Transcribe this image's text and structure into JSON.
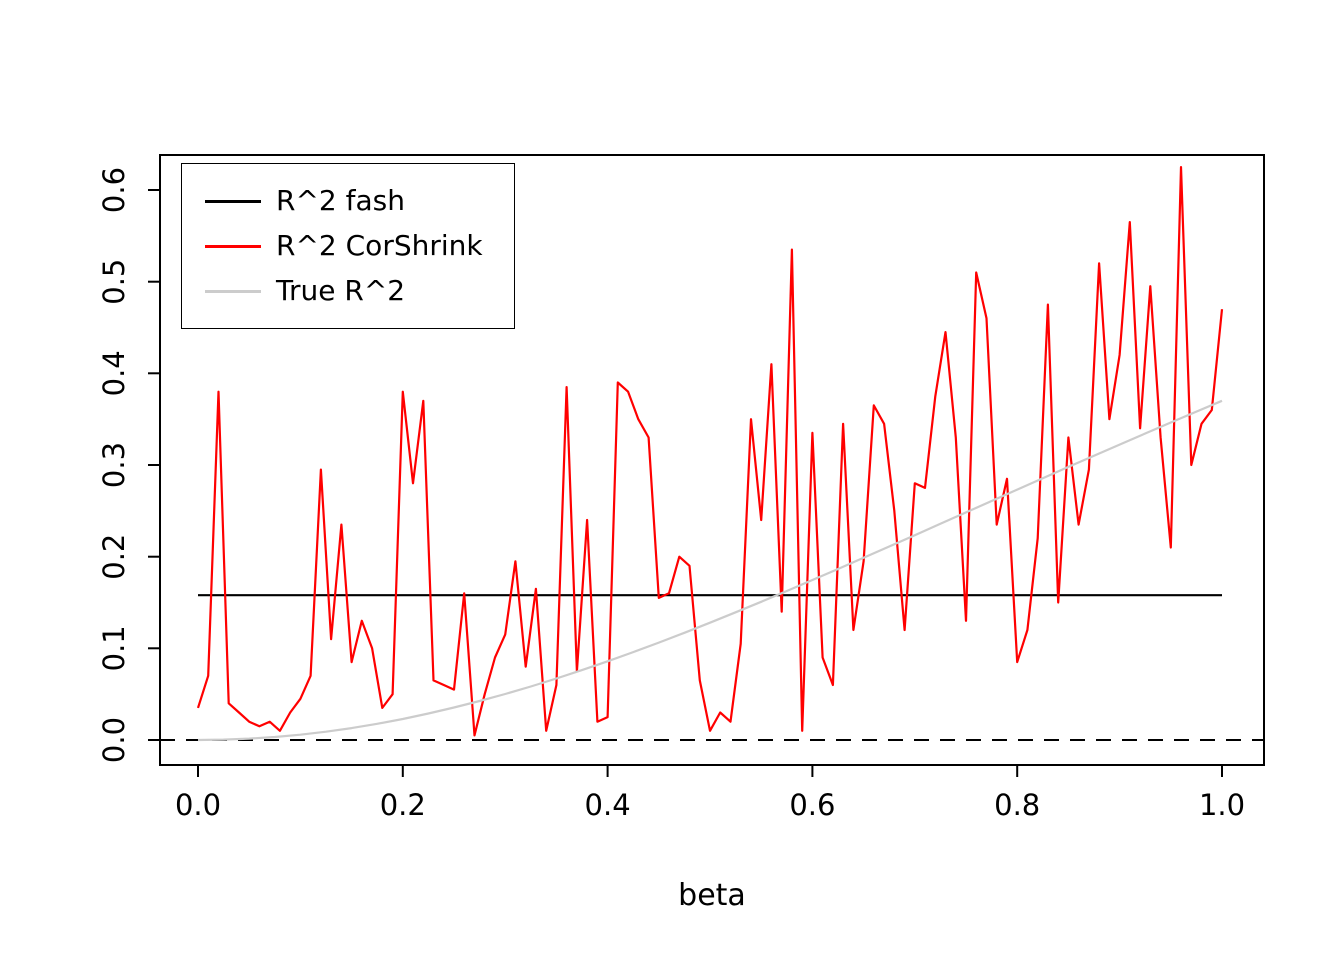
{
  "figure": {
    "background": "#ffffff",
    "legend": {
      "position": "top-left",
      "entries": [
        {
          "label": "R^2 fash",
          "color": "#000000"
        },
        {
          "label": "R^2 CorShrink",
          "color": "#ff0000"
        },
        {
          "label": "True R^2",
          "color": "#cccccc"
        }
      ]
    }
  },
  "chart_data": {
    "type": "line",
    "title": "",
    "xlabel": "beta",
    "ylabel": "",
    "xlim": [
      0,
      1
    ],
    "ylim": [
      -0.02,
      0.64
    ],
    "x_ticks": [
      "0.0",
      "0.2",
      "0.4",
      "0.6",
      "0.8",
      "1.0"
    ],
    "y_ticks": [
      "0.0",
      "0.1",
      "0.2",
      "0.3",
      "0.4",
      "0.5",
      "0.6"
    ],
    "grid": false,
    "legend_position": "top-left",
    "reference_lines": [
      {
        "y": 0,
        "style": "dashed",
        "color": "#000000"
      }
    ],
    "series": [
      {
        "name": "R^2 fash",
        "color": "#000000",
        "style": "solid",
        "x": [
          0,
          1
        ],
        "values": [
          0.158,
          0.158
        ]
      },
      {
        "name": "R^2 CorShrink",
        "color": "#ff0000",
        "style": "solid",
        "x_start": 0,
        "x_step": 0.01,
        "values": [
          0.035,
          0.07,
          0.38,
          0.04,
          0.03,
          0.02,
          0.015,
          0.02,
          0.01,
          0.03,
          0.045,
          0.07,
          0.295,
          0.11,
          0.235,
          0.085,
          0.13,
          0.1,
          0.035,
          0.05,
          0.38,
          0.28,
          0.37,
          0.065,
          0.06,
          0.055,
          0.16,
          0.005,
          0.05,
          0.09,
          0.115,
          0.195,
          0.08,
          0.165,
          0.01,
          0.06,
          0.385,
          0.075,
          0.24,
          0.02,
          0.025,
          0.39,
          0.38,
          0.35,
          0.33,
          0.155,
          0.16,
          0.2,
          0.19,
          0.065,
          0.01,
          0.03,
          0.02,
          0.105,
          0.35,
          0.24,
          0.41,
          0.14,
          0.535,
          0.01,
          0.335,
          0.09,
          0.06,
          0.345,
          0.12,
          0.195,
          0.365,
          0.345,
          0.25,
          0.12,
          0.28,
          0.275,
          0.375,
          0.445,
          0.33,
          0.13,
          0.51,
          0.46,
          0.235,
          0.285,
          0.085,
          0.12,
          0.22,
          0.475,
          0.15,
          0.33,
          0.235,
          0.295,
          0.52,
          0.35,
          0.42,
          0.565,
          0.34,
          0.495,
          0.33,
          0.21,
          0.625,
          0.3,
          0.345,
          0.36,
          0.47
        ]
      },
      {
        "name": "True R^2",
        "color": "#cccccc",
        "style": "solid",
        "x_start": 0,
        "x_step": 0.025,
        "values": [
          0,
          0.0004,
          0.0015,
          0.0033,
          0.0058,
          0.0091,
          0.013,
          0.0177,
          0.0229,
          0.0289,
          0.0354,
          0.0425,
          0.0502,
          0.0584,
          0.0671,
          0.0763,
          0.0859,
          0.0959,
          0.1063,
          0.117,
          0.128,
          0.1393,
          0.1508,
          0.1626,
          0.1745,
          0.1866,
          0.1988,
          0.2111,
          0.2234,
          0.2359,
          0.2483,
          0.2607,
          0.2732,
          0.2855,
          0.2979,
          0.3101,
          0.3223,
          0.3344,
          0.3464,
          0.3582,
          0.37
        ]
      }
    ]
  }
}
